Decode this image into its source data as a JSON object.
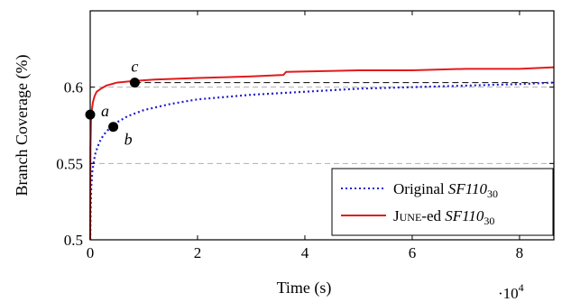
{
  "chart_data": {
    "type": "line",
    "xlabel": "Time (s)",
    "ylabel": "Branch Coverage (%)",
    "x_multiplier_label": "·10",
    "x_multiplier_exponent": "4",
    "xlim": [
      0,
      86400
    ],
    "ylim": [
      0.5,
      0.65
    ],
    "x_ticks": [
      0,
      20000,
      40000,
      60000,
      80000
    ],
    "x_tick_labels": [
      "0",
      "2",
      "4",
      "6",
      "8"
    ],
    "y_ticks": [
      0.5,
      0.55,
      0.6
    ],
    "y_tick_labels": [
      "0.5",
      "0.55",
      "0.6"
    ],
    "grid": "dashed horizontal at 0.55 and 0.6",
    "legend_position": "bottom-right",
    "series": [
      {
        "name_parts": [
          "Original ",
          "SF110",
          "30"
        ],
        "style": "dotted",
        "color": "#1f1fd0",
        "x": [
          0,
          80,
          200,
          400,
          700,
          1000,
          1500,
          2000,
          3000,
          4000,
          5000,
          7000,
          10000,
          15000,
          20000,
          30000,
          40000,
          50000,
          60000,
          70000,
          80000,
          86400
        ],
        "y": [
          0.5,
          0.52,
          0.535,
          0.545,
          0.552,
          0.557,
          0.562,
          0.566,
          0.571,
          0.574,
          0.577,
          0.581,
          0.585,
          0.589,
          0.592,
          0.595,
          0.597,
          0.599,
          0.6,
          0.601,
          0.602,
          0.603
        ]
      },
      {
        "name_parts": [
          "June",
          "-ed ",
          "SF110",
          "30"
        ],
        "style": "solid",
        "color": "#e31a1c",
        "x": [
          0,
          50,
          150,
          300,
          500,
          800,
          1200,
          2000,
          3000,
          5000,
          8000,
          12000,
          20000,
          30000,
          36000,
          36500,
          50000,
          60000,
          70000,
          80000,
          86400
        ],
        "y": [
          0.5,
          0.56,
          0.578,
          0.585,
          0.59,
          0.594,
          0.597,
          0.599,
          0.601,
          0.603,
          0.604,
          0.605,
          0.606,
          0.607,
          0.608,
          0.61,
          0.611,
          0.611,
          0.612,
          0.612,
          0.613
        ]
      }
    ],
    "reference_lines": [
      {
        "style": "dashed",
        "y": 0.603,
        "x_from": 8300,
        "x_to": 86400
      }
    ],
    "points": [
      {
        "label": "a",
        "x": 0,
        "y": 0.582
      },
      {
        "label": "b",
        "x": 4300,
        "y": 0.574
      },
      {
        "label": "c",
        "x": 8300,
        "y": 0.603
      }
    ]
  }
}
